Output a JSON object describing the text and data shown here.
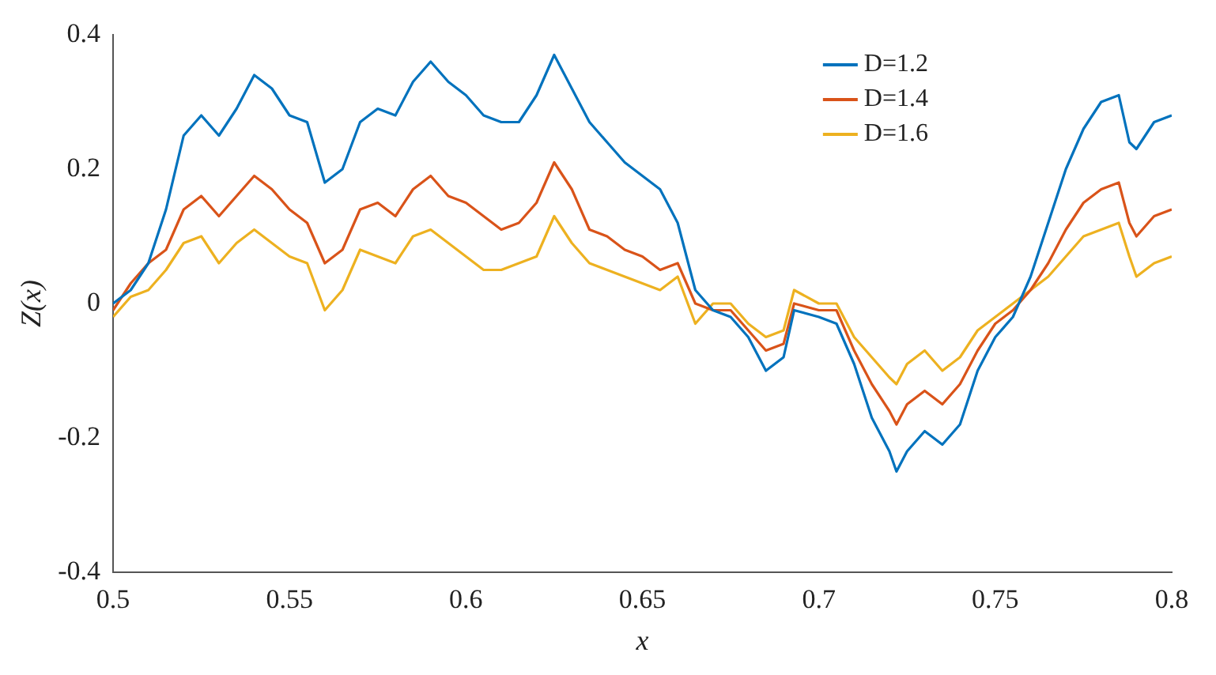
{
  "chart_data": {
    "type": "line",
    "xlabel": "x",
    "ylabel": "Z(x)",
    "x": [
      0.5,
      0.505,
      0.51,
      0.515,
      0.52,
      0.525,
      0.53,
      0.535,
      0.54,
      0.545,
      0.55,
      0.555,
      0.56,
      0.565,
      0.57,
      0.575,
      0.58,
      0.585,
      0.59,
      0.595,
      0.6,
      0.605,
      0.61,
      0.615,
      0.62,
      0.625,
      0.63,
      0.635,
      0.64,
      0.645,
      0.65,
      0.655,
      0.66,
      0.665,
      0.67,
      0.675,
      0.68,
      0.685,
      0.69,
      0.693,
      0.7,
      0.705,
      0.71,
      0.715,
      0.72,
      0.722,
      0.725,
      0.73,
      0.735,
      0.74,
      0.745,
      0.75,
      0.755,
      0.76,
      0.765,
      0.77,
      0.775,
      0.78,
      0.785,
      0.788,
      0.79,
      0.795,
      0.8
    ],
    "series": [
      {
        "name": "D=1.2",
        "color": "#0072bd",
        "values": [
          0,
          0.02,
          0.06,
          0.14,
          0.25,
          0.28,
          0.25,
          0.29,
          0.34,
          0.32,
          0.28,
          0.27,
          0.18,
          0.2,
          0.27,
          0.29,
          0.28,
          0.33,
          0.36,
          0.33,
          0.31,
          0.28,
          0.27,
          0.27,
          0.31,
          0.37,
          0.32,
          0.27,
          0.24,
          0.21,
          0.19,
          0.17,
          0.12,
          0.02,
          -0.01,
          -0.02,
          -0.05,
          -0.1,
          -0.08,
          -0.01,
          -0.02,
          -0.03,
          -0.09,
          -0.17,
          -0.22,
          -0.25,
          -0.22,
          -0.19,
          -0.21,
          -0.18,
          -0.1,
          -0.05,
          -0.02,
          0.04,
          0.12,
          0.2,
          0.26,
          0.3,
          0.31,
          0.24,
          0.23,
          0.27,
          0.28
        ]
      },
      {
        "name": "D=1.4",
        "color": "#d95319",
        "values": [
          -0.01,
          0.03,
          0.06,
          0.08,
          0.14,
          0.16,
          0.13,
          0.16,
          0.19,
          0.17,
          0.14,
          0.12,
          0.06,
          0.08,
          0.14,
          0.15,
          0.13,
          0.17,
          0.19,
          0.16,
          0.15,
          0.13,
          0.11,
          0.12,
          0.15,
          0.21,
          0.17,
          0.11,
          0.1,
          0.08,
          0.07,
          0.05,
          0.06,
          0,
          -0.01,
          -0.01,
          -0.04,
          -0.07,
          -0.06,
          0,
          -0.01,
          -0.01,
          -0.07,
          -0.12,
          -0.16,
          -0.18,
          -0.15,
          -0.13,
          -0.15,
          -0.12,
          -0.07,
          -0.03,
          -0.01,
          0.02,
          0.06,
          0.11,
          0.15,
          0.17,
          0.18,
          0.12,
          0.1,
          0.13,
          0.14
        ]
      },
      {
        "name": "D=1.6",
        "color": "#edb120",
        "values": [
          -0.02,
          0.01,
          0.02,
          0.05,
          0.09,
          0.1,
          0.06,
          0.09,
          0.11,
          0.09,
          0.07,
          0.06,
          -0.01,
          0.02,
          0.08,
          0.07,
          0.06,
          0.1,
          0.11,
          0.09,
          0.07,
          0.05,
          0.05,
          0.06,
          0.07,
          0.13,
          0.09,
          0.06,
          0.05,
          0.04,
          0.03,
          0.02,
          0.04,
          -0.03,
          0,
          0,
          -0.03,
          -0.05,
          -0.04,
          0.02,
          0,
          0,
          -0.05,
          -0.08,
          -0.11,
          -0.12,
          -0.09,
          -0.07,
          -0.1,
          -0.08,
          -0.04,
          -0.02,
          0,
          0.02,
          0.04,
          0.07,
          0.1,
          0.11,
          0.12,
          0.07,
          0.04,
          0.06,
          0.07
        ]
      }
    ],
    "xlim": [
      0.5,
      0.8
    ],
    "xticks": [
      0.5,
      0.55,
      0.6,
      0.65,
      0.7,
      0.75,
      0.8
    ],
    "ylim": [
      -0.4,
      0.4
    ],
    "yticks": [
      -0.4,
      -0.2,
      0,
      0.2,
      0.4
    ],
    "grid": false,
    "legend": "top right",
    "marker": "none",
    "line_style": "solid"
  }
}
